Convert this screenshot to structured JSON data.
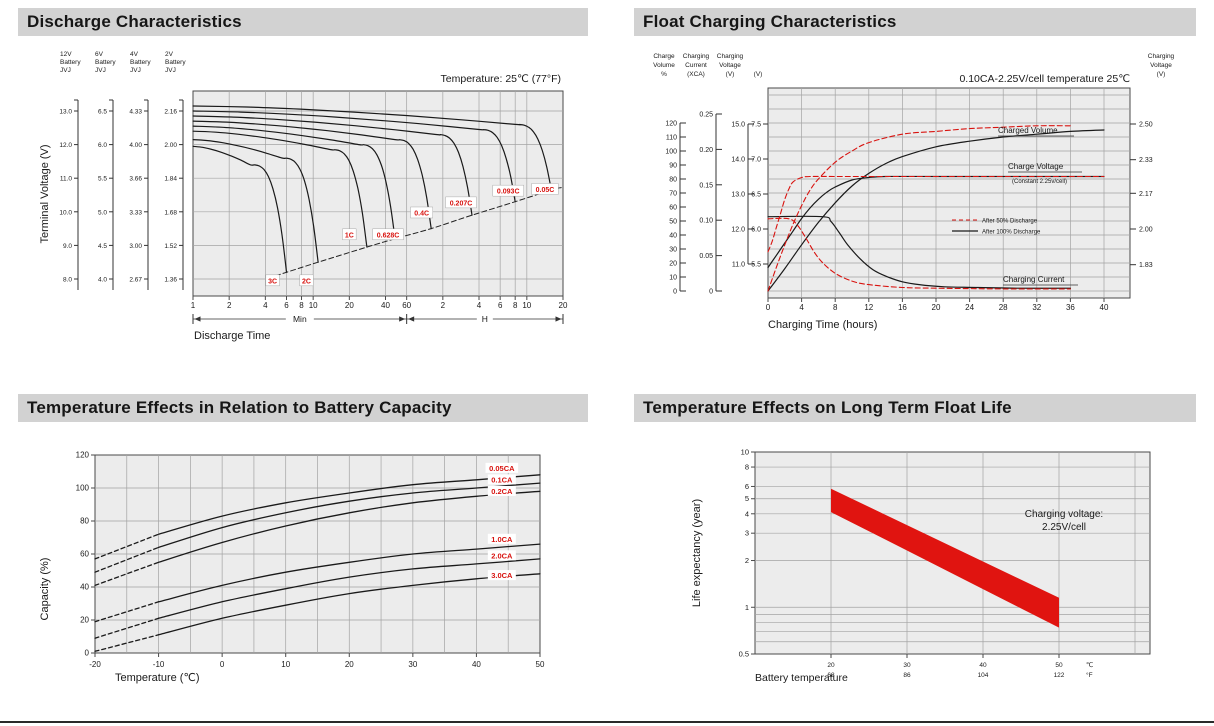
{
  "page": {
    "background": "#ffffff",
    "header_bg": "#d2d2d2",
    "plot_bg": "#ececec",
    "grid_color": "#a3a3a3",
    "accent_red": "#d8130f",
    "curve_black": "#1a1a1a"
  },
  "panels": {
    "discharge": {
      "title": "Discharge Characteristics"
    },
    "float_charging": {
      "title": "Float Charging Characteristics"
    },
    "temp_capacity": {
      "title": "Temperature Effects in Relation to Battery Capacity"
    },
    "float_life": {
      "title": "Temperature Effects on Long Term Float Life"
    }
  },
  "chart_data": [
    {
      "id": "discharge",
      "type": "line",
      "temperature_note": "Temperature: 25℃ (77°F)",
      "ylabel": "Terminal Voltage (V)",
      "xlabel": "Discharge Time",
      "x_unit_segments": [
        "Min",
        "H"
      ],
      "x_ticks_minutes": [
        1,
        2,
        4,
        6,
        8,
        10,
        20,
        40,
        60
      ],
      "x_ticks_hours": [
        2,
        4,
        6,
        8,
        10,
        20
      ],
      "voltage_scales": [
        {
          "header": [
            "12V",
            "Battery",
            "JVJ"
          ],
          "ticks": [
            "13.0",
            "12.0",
            "11.0",
            "10.0",
            "9.0",
            "8.0"
          ]
        },
        {
          "header": [
            "6V",
            "Battery",
            "JVJ"
          ],
          "ticks": [
            "6.5",
            "6.0",
            "5.5",
            "5.0",
            "4.5",
            "4.0"
          ]
        },
        {
          "header": [
            "4V",
            "Battery",
            "JVJ"
          ],
          "ticks": [
            "4.33",
            "4.00",
            "3.66",
            "3.33",
            "3.00",
            "2.67"
          ]
        },
        {
          "header": [
            "2V",
            "Battery",
            "JVJ"
          ],
          "ticks": [
            "2.16",
            "2.00",
            "1.84",
            "1.68",
            "1.52",
            "1.36"
          ]
        }
      ],
      "curves": [
        {
          "label": "3C",
          "end_minutes": 6,
          "start_v": 11.95,
          "cutoff_v": 8.2,
          "label_at_minutes": 4.6,
          "label_at_v": 7.93
        },
        {
          "label": "2C",
          "end_minutes": 11,
          "start_v": 12.15,
          "cutoff_v": 8.5,
          "label_at_minutes": 8.8,
          "label_at_v": 7.93
        },
        {
          "label": "1C",
          "end_minutes": 28,
          "start_v": 12.4,
          "cutoff_v": 8.95,
          "label_at_minutes": 20,
          "label_at_v": 9.3
        },
        {
          "label": "0.628C",
          "end_minutes": 48,
          "start_v": 12.55,
          "cutoff_v": 9.2,
          "label_at_minutes": 42,
          "label_at_v": 9.3
        },
        {
          "label": "0.4C",
          "end_minutes": 96,
          "start_v": 12.7,
          "cutoff_v": 9.5,
          "label_at_minutes": 80,
          "label_at_v": 9.95
        },
        {
          "label": "0.207C",
          "end_minutes": 210,
          "start_v": 12.85,
          "cutoff_v": 9.9,
          "label_at_minutes": 170,
          "label_at_v": 10.25
        },
        {
          "label": "0.093C",
          "end_minutes": 480,
          "start_v": 13.0,
          "cutoff_v": 10.3,
          "label_at_minutes": 420,
          "label_at_v": 10.6
        },
        {
          "label": "0.05C",
          "end_minutes": 960,
          "start_v": 13.15,
          "cutoff_v": 10.65,
          "label_at_minutes": 850,
          "label_at_v": 10.65
        }
      ]
    },
    {
      "id": "float_charging",
      "type": "line",
      "condition_note": "0.10CA-2.25V/cell temperature 25℃",
      "xlabel": "Charging Time (hours)",
      "x_ticks_hours": [
        0,
        4,
        8,
        12,
        16,
        20,
        24,
        28,
        32,
        36,
        40
      ],
      "left_scales": [
        {
          "header": [
            "Charge",
            "Volume",
            "%"
          ],
          "ticks": [
            "0",
            "10",
            "20",
            "30",
            "40",
            "50",
            "60",
            "70",
            "80",
            "90",
            "100",
            "110",
            "120"
          ]
        },
        {
          "header": [
            "Charging",
            "Current",
            "(XCA)"
          ],
          "ticks": [
            "0",
            "0.05",
            "0.10",
            "0.15",
            "0.20",
            "0.25"
          ]
        },
        {
          "header": [
            "Charging",
            "Voltage",
            "(V)"
          ],
          "ticks": [
            "11.0",
            "12.0",
            "13.0",
            "14.0",
            "15.0"
          ]
        },
        {
          "header": [
            "(V)"
          ],
          "ticks": [
            "5.5",
            "6.0",
            "6.5",
            "7.0",
            "7.5"
          ]
        }
      ],
      "right_scale": {
        "header": [
          "Charging",
          "Voltage",
          "(V)"
        ],
        "ticks": [
          "2.50",
          "2.33",
          "2.17",
          "2.00",
          "1.83"
        ]
      },
      "curve_labels": {
        "charged_volume": "Charged Volume",
        "charge_voltage": "Charge Voltage",
        "charge_voltage_sub": "(Constant 2.25v/cell)",
        "charging_current": "Charging Current"
      },
      "legend": [
        {
          "label": "After  50% Discharge",
          "style": "dashed-red"
        },
        {
          "label": "After 100% Discharge",
          "style": "solid-black"
        }
      ],
      "series": {
        "volume_50": [
          [
            0,
            0
          ],
          [
            1,
            17
          ],
          [
            2,
            33
          ],
          [
            3,
            48
          ],
          [
            4,
            61
          ],
          [
            5,
            72
          ],
          [
            6,
            80
          ],
          [
            8,
            92
          ],
          [
            10,
            100
          ],
          [
            12,
            106
          ],
          [
            16,
            112
          ],
          [
            20,
            114
          ],
          [
            24,
            116
          ],
          [
            28,
            117
          ],
          [
            32,
            118
          ],
          [
            36,
            118
          ]
        ],
        "volume_100": [
          [
            0,
            0
          ],
          [
            2,
            16
          ],
          [
            4,
            33
          ],
          [
            6,
            49
          ],
          [
            8,
            63
          ],
          [
            10,
            75
          ],
          [
            12,
            84
          ],
          [
            14,
            91
          ],
          [
            16,
            96
          ],
          [
            20,
            103
          ],
          [
            24,
            107
          ],
          [
            28,
            110
          ],
          [
            32,
            112
          ],
          [
            36,
            114
          ],
          [
            40,
            115
          ]
        ],
        "voltage_50": [
          [
            0,
            11.35
          ],
          [
            0.5,
            11.65
          ],
          [
            1,
            12.05
          ],
          [
            1.5,
            12.45
          ],
          [
            2,
            12.85
          ],
          [
            2.5,
            13.15
          ],
          [
            3,
            13.35
          ],
          [
            4,
            13.47
          ],
          [
            5,
            13.5
          ],
          [
            8,
            13.5
          ],
          [
            14,
            13.5
          ],
          [
            22,
            13.5
          ],
          [
            30,
            13.5
          ],
          [
            40,
            13.5
          ]
        ],
        "voltage_100": [
          [
            0,
            10.9
          ],
          [
            1,
            11.25
          ],
          [
            2,
            11.6
          ],
          [
            3,
            11.95
          ],
          [
            4,
            12.3
          ],
          [
            5,
            12.6
          ],
          [
            6,
            12.85
          ],
          [
            7,
            13.05
          ],
          [
            8,
            13.2
          ],
          [
            10,
            13.4
          ],
          [
            12,
            13.47
          ],
          [
            14,
            13.5
          ],
          [
            20,
            13.5
          ],
          [
            28,
            13.5
          ],
          [
            34,
            13.5
          ],
          [
            40,
            13.5
          ]
        ],
        "current_50": [
          [
            0,
            0.102
          ],
          [
            2.5,
            0.102
          ],
          [
            3.5,
            0.093
          ],
          [
            4.5,
            0.075
          ],
          [
            5.5,
            0.055
          ],
          [
            6.5,
            0.04
          ],
          [
            8,
            0.025
          ],
          [
            10,
            0.014
          ],
          [
            12,
            0.009
          ],
          [
            16,
            0.005
          ],
          [
            20,
            0.004
          ],
          [
            28,
            0.003
          ],
          [
            36,
            0.003
          ]
        ],
        "current_100": [
          [
            0,
            0.105
          ],
          [
            6.5,
            0.105
          ],
          [
            7.5,
            0.098
          ],
          [
            8.5,
            0.082
          ],
          [
            9.5,
            0.065
          ],
          [
            11,
            0.045
          ],
          [
            12.5,
            0.03
          ],
          [
            14,
            0.021
          ],
          [
            16,
            0.013
          ],
          [
            18,
            0.009
          ],
          [
            21,
            0.006
          ],
          [
            25,
            0.005
          ],
          [
            30,
            0.004
          ],
          [
            36,
            0.004
          ]
        ]
      }
    },
    {
      "id": "temp_capacity",
      "type": "line",
      "ylabel": "Capacity (%)",
      "xlabel": "Temperature (℃)",
      "y_ticks": [
        0,
        20,
        40,
        60,
        80,
        100,
        120
      ],
      "x_ticks": [
        -20,
        -10,
        0,
        10,
        20,
        30,
        40,
        50
      ],
      "series": [
        {
          "label": "0.05CA",
          "points": [
            [
              -20,
              57
            ],
            [
              -10,
              72
            ],
            [
              0,
              83
            ],
            [
              10,
              91
            ],
            [
              20,
              97
            ],
            [
              30,
              102
            ],
            [
              40,
              105
            ],
            [
              50,
              108
            ]
          ],
          "label_at": [
            44,
            111
          ]
        },
        {
          "label": "0.1CA",
          "points": [
            [
              -20,
              49
            ],
            [
              -10,
              64
            ],
            [
              0,
              76
            ],
            [
              10,
              85
            ],
            [
              20,
              92
            ],
            [
              30,
              97
            ],
            [
              40,
              100
            ],
            [
              50,
              103
            ]
          ],
          "label_at": [
            44,
            104
          ]
        },
        {
          "label": "0.2CA",
          "points": [
            [
              -20,
              41
            ],
            [
              -10,
              55
            ],
            [
              0,
              67
            ],
            [
              10,
              77
            ],
            [
              20,
              85
            ],
            [
              30,
              91
            ],
            [
              40,
              95
            ],
            [
              50,
              98
            ]
          ],
          "label_at": [
            44,
            97
          ]
        },
        {
          "label": "1.0CA",
          "points": [
            [
              -20,
              19
            ],
            [
              -10,
              31
            ],
            [
              0,
              41
            ],
            [
              10,
              49
            ],
            [
              20,
              55
            ],
            [
              30,
              60
            ],
            [
              40,
              63
            ],
            [
              50,
              66
            ]
          ],
          "label_at": [
            44,
            68
          ]
        },
        {
          "label": "2.0CA",
          "points": [
            [
              -20,
              9
            ],
            [
              -10,
              21
            ],
            [
              0,
              31
            ],
            [
              10,
              39
            ],
            [
              20,
              46
            ],
            [
              30,
              51
            ],
            [
              40,
              54
            ],
            [
              50,
              57
            ]
          ],
          "label_at": [
            44,
            58
          ]
        },
        {
          "label": "3.0CA",
          "points": [
            [
              -20,
              1
            ],
            [
              -10,
              11
            ],
            [
              0,
              21
            ],
            [
              10,
              29
            ],
            [
              20,
              36
            ],
            [
              30,
              41
            ],
            [
              40,
              45
            ],
            [
              50,
              48
            ]
          ],
          "label_at": [
            44,
            46
          ]
        }
      ]
    },
    {
      "id": "float_life",
      "type": "band",
      "ylabel": "Life expectancy (year)",
      "xlabel": "Battery temperature",
      "annotation": [
        "Charging voltage:",
        "2.25V/cell"
      ],
      "y_ticks": [
        10,
        8,
        6,
        5,
        4,
        3,
        2,
        1,
        0.5
      ],
      "y_minor_ticks": [
        0.9,
        0.8,
        0.7,
        0.6
      ],
      "x_ticks_c": [
        20,
        30,
        40,
        50
      ],
      "x_ticks_f": [
        68,
        86,
        104,
        122
      ],
      "x_unit_c": "℃",
      "x_unit_f": "°F",
      "band_upper": [
        [
          20,
          5.8
        ],
        [
          30,
          3.38
        ],
        [
          40,
          1.97
        ],
        [
          50,
          1.15
        ]
      ],
      "band_lower": [
        [
          20,
          4.1
        ],
        [
          30,
          2.32
        ],
        [
          40,
          1.31
        ],
        [
          50,
          0.74
        ]
      ],
      "band_color": "#e01410"
    }
  ]
}
